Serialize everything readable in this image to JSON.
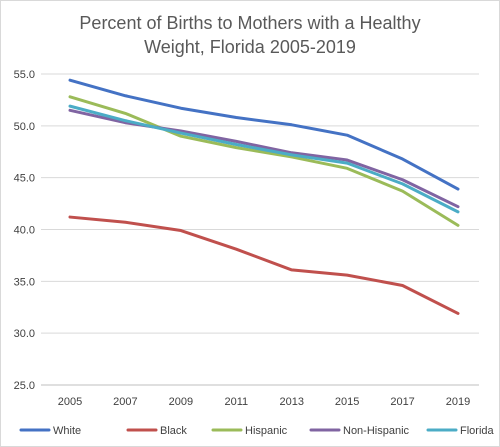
{
  "chart_data": {
    "type": "line",
    "title": [
      "Percent of Births to Mothers with a Healthy",
      "Weight, Florida 2005-2019"
    ],
    "xlabel": "",
    "ylabel": "",
    "x": [
      "2005",
      "2007",
      "2009",
      "2011",
      "2013",
      "2015",
      "2017",
      "2019"
    ],
    "ylim": [
      25.0,
      55.0
    ],
    "yticks": [
      "25.0",
      "30.0",
      "35.0",
      "40.0",
      "45.0",
      "50.0",
      "55.0"
    ],
    "grid": "horizontal",
    "legend_position": "bottom",
    "series": [
      {
        "name": "White",
        "color": "#4472C4",
        "values": [
          54.4,
          52.9,
          51.7,
          50.8,
          50.1,
          49.1,
          46.8,
          43.9
        ]
      },
      {
        "name": "Black",
        "color": "#C0504D",
        "values": [
          41.2,
          40.7,
          39.9,
          38.1,
          36.1,
          35.6,
          34.6,
          31.9
        ]
      },
      {
        "name": "Hispanic",
        "color": "#9BBB59",
        "values": [
          52.8,
          51.2,
          49.0,
          47.9,
          47.0,
          45.9,
          43.7,
          40.4
        ]
      },
      {
        "name": "Non-Hispanic",
        "color": "#8064A2",
        "values": [
          51.5,
          50.3,
          49.5,
          48.5,
          47.4,
          46.7,
          44.8,
          42.2
        ]
      },
      {
        "name": "Florida",
        "color": "#4BACC6",
        "values": [
          51.9,
          50.5,
          49.3,
          48.2,
          47.2,
          46.4,
          44.4,
          41.7
        ]
      }
    ]
  }
}
